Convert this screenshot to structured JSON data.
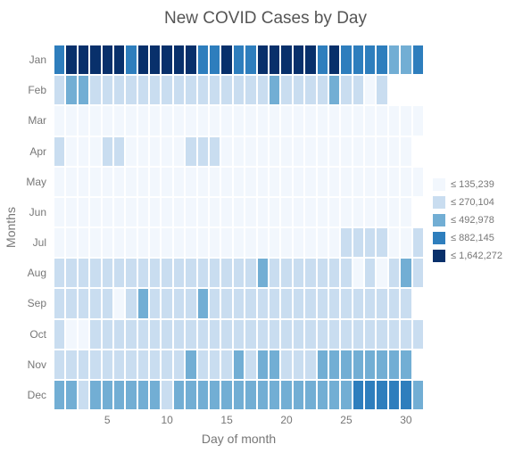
{
  "chart": {
    "type": "heatmap",
    "title": "New COVID Cases by Day",
    "title_fontsize": 19,
    "title_color": "#555555",
    "background_color": "#ffffff",
    "cell_border_color": "#ffffff",
    "tick_color": "#777777",
    "tick_fontsize": 12,
    "axis_title_fontsize": 14,
    "y_title": "Months",
    "x_title": "Day of month",
    "months": [
      "Jan",
      "Feb",
      "Mar",
      "Apr",
      "May",
      "Jun",
      "Jul",
      "Aug",
      "Sep",
      "Oct",
      "Nov",
      "Dec"
    ],
    "days": 31,
    "x_ticks": [
      5,
      10,
      15,
      20,
      25,
      30
    ],
    "colorscale": [
      "#f2f7fd",
      "#c9ddf0",
      "#72aed4",
      "#2e7ebd",
      "#08306b"
    ],
    "month_lengths": [
      31,
      28,
      31,
      30,
      31,
      30,
      31,
      31,
      30,
      31,
      30,
      31
    ],
    "data": [
      [
        3,
        4,
        4,
        4,
        4,
        4,
        3,
        4,
        4,
        4,
        4,
        4,
        3,
        3,
        4,
        3,
        3,
        4,
        4,
        4,
        4,
        4,
        3,
        4,
        3,
        3,
        3,
        3,
        2,
        2,
        3
      ],
      [
        1,
        2,
        2,
        1,
        1,
        1,
        1,
        1,
        1,
        1,
        1,
        1,
        1,
        1,
        1,
        1,
        1,
        1,
        2,
        1,
        1,
        1,
        1,
        2,
        1,
        1,
        0,
        1,
        0,
        0,
        0
      ],
      [
        0,
        0,
        0,
        0,
        0,
        0,
        0,
        0,
        0,
        0,
        0,
        0,
        0,
        0,
        0,
        0,
        0,
        0,
        0,
        0,
        0,
        0,
        0,
        0,
        0,
        0,
        0,
        0,
        0,
        0,
        0
      ],
      [
        1,
        0,
        0,
        0,
        1,
        1,
        0,
        0,
        0,
        0,
        0,
        1,
        1,
        1,
        0,
        0,
        0,
        0,
        0,
        0,
        0,
        0,
        0,
        0,
        0,
        0,
        0,
        0,
        0,
        0,
        0
      ],
      [
        0,
        0,
        0,
        0,
        0,
        0,
        0,
        0,
        0,
        0,
        0,
        0,
        0,
        0,
        0,
        0,
        0,
        0,
        0,
        0,
        0,
        0,
        0,
        0,
        0,
        0,
        0,
        0,
        0,
        0,
        0
      ],
      [
        0,
        0,
        0,
        0,
        0,
        0,
        0,
        0,
        0,
        0,
        0,
        0,
        0,
        0,
        0,
        0,
        0,
        0,
        0,
        0,
        0,
        0,
        0,
        0,
        0,
        0,
        0,
        0,
        0,
        0,
        0
      ],
      [
        0,
        0,
        0,
        0,
        0,
        0,
        0,
        0,
        0,
        0,
        0,
        0,
        0,
        0,
        0,
        0,
        0,
        0,
        0,
        0,
        0,
        0,
        0,
        0,
        1,
        1,
        1,
        1,
        0,
        0,
        1
      ],
      [
        1,
        1,
        1,
        1,
        1,
        1,
        1,
        1,
        1,
        1,
        1,
        1,
        1,
        1,
        1,
        1,
        1,
        2,
        1,
        1,
        1,
        1,
        1,
        1,
        1,
        0,
        1,
        0,
        1,
        2,
        1
      ],
      [
        1,
        1,
        1,
        1,
        1,
        0,
        1,
        2,
        1,
        1,
        1,
        1,
        2,
        1,
        1,
        1,
        1,
        1,
        1,
        1,
        1,
        1,
        1,
        1,
        1,
        1,
        1,
        1,
        1,
        1,
        0
      ],
      [
        1,
        0,
        0,
        1,
        1,
        1,
        1,
        1,
        1,
        1,
        1,
        1,
        1,
        1,
        1,
        1,
        1,
        1,
        1,
        1,
        1,
        1,
        1,
        1,
        1,
        1,
        1,
        1,
        1,
        1,
        1
      ],
      [
        1,
        1,
        1,
        1,
        1,
        1,
        1,
        1,
        1,
        1,
        1,
        2,
        1,
        1,
        1,
        2,
        1,
        2,
        2,
        1,
        1,
        1,
        2,
        2,
        2,
        2,
        2,
        2,
        2,
        2,
        0
      ],
      [
        2,
        2,
        1,
        2,
        2,
        2,
        2,
        2,
        2,
        1,
        2,
        2,
        2,
        2,
        2,
        2,
        2,
        2,
        2,
        2,
        2,
        2,
        2,
        2,
        2,
        3,
        3,
        3,
        3,
        3,
        2
      ]
    ],
    "legend": {
      "labels": [
        "≤ 135,239",
        "≤ 270,104",
        "≤ 492,978",
        "≤ 882,145",
        "≤ 1,642,272"
      ],
      "colors": [
        "#f2f7fd",
        "#c9ddf0",
        "#72aed4",
        "#2e7ebd",
        "#08306b"
      ]
    }
  }
}
